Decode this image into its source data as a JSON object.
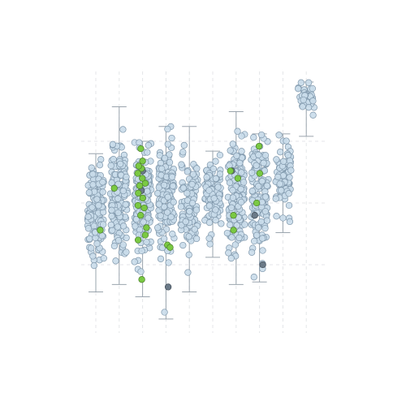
{
  "chart_data": {
    "type": "scatter",
    "subtype": "strip-plot-with-whiskers",
    "title": "",
    "xlabel": "",
    "ylabel": "",
    "grid": true,
    "legend": "none",
    "axis_labels_visible": false,
    "ylim": [
      0,
      100
    ],
    "colors": {
      "point_fill": "#c9dcea",
      "point_stroke": "#7f97ab",
      "highlight_green": "#7ac943",
      "highlight_green_stroke": "#4a7d2a",
      "highlight_dark": "#6b7a88",
      "whisker": "#9aa4ad",
      "grid": "#e4e6e8"
    },
    "categories": [
      "1",
      "2",
      "3",
      "4",
      "5",
      "6",
      "7",
      "8",
      "9",
      "10"
    ],
    "series": [
      {
        "category": "1",
        "center": 47,
        "spread": 13,
        "min": 14,
        "max": 70,
        "n": 150,
        "green": [
          39
        ],
        "dark": []
      },
      {
        "category": "2",
        "center": 52,
        "spread": 14,
        "min": 17,
        "max": 89,
        "n": 150,
        "green": [
          56
        ],
        "dark": []
      },
      {
        "category": "3",
        "center": 50,
        "spread": 14,
        "min": 12,
        "max": 75,
        "n": 170,
        "green": [
          49,
          54,
          58,
          60,
          52,
          64,
          67,
          45,
          40,
          37,
          62,
          48,
          19,
          57,
          35,
          72,
          65
        ],
        "dark": [
          55,
          63
        ]
      },
      {
        "category": "4",
        "center": 51,
        "spread": 15,
        "min": 3,
        "max": 81,
        "n": 150,
        "green": [
          33,
          32
        ],
        "dark": [
          16
        ]
      },
      {
        "category": "5",
        "center": 51,
        "spread": 14,
        "min": 14,
        "max": 81,
        "n": 110,
        "green": [],
        "dark": []
      },
      {
        "category": "6",
        "center": 54,
        "spread": 10,
        "min": 28,
        "max": 71,
        "n": 110,
        "green": [],
        "dark": []
      },
      {
        "category": "7",
        "center": 54,
        "spread": 14,
        "min": 17,
        "max": 87,
        "n": 150,
        "green": [
          63,
          60,
          45,
          39
        ],
        "dark": [
          63
        ]
      },
      {
        "category": "8",
        "center": 53,
        "spread": 14,
        "min": 18,
        "max": 78,
        "n": 140,
        "green": [
          73,
          62,
          50
        ],
        "dark": [
          45,
          25
        ]
      },
      {
        "category": "9",
        "center": 60,
        "spread": 9,
        "min": 38,
        "max": 78,
        "n": 90,
        "green": [],
        "dark": []
      },
      {
        "category": "10",
        "center": 93,
        "spread": 4,
        "min": 77,
        "max": 99,
        "n": 40,
        "green": [],
        "dark": []
      }
    ]
  }
}
